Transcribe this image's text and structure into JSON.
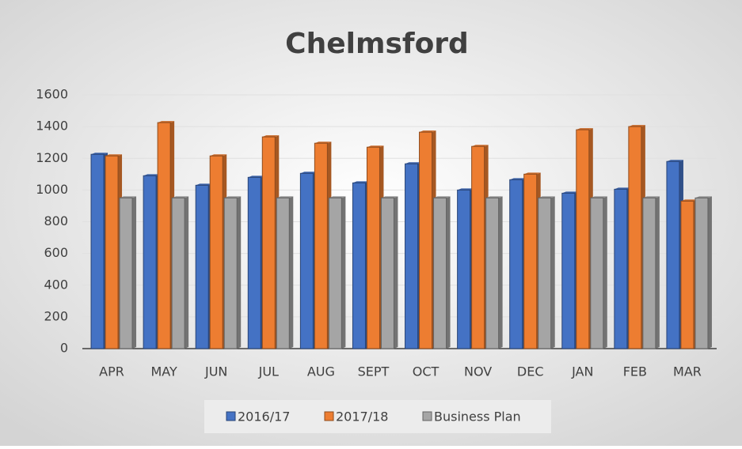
{
  "chart_data": {
    "type": "bar",
    "title": "Chelmsford",
    "categories": [
      "APR",
      "MAY",
      "JUN",
      "JUL",
      "AUG",
      "SEPT",
      "OCT",
      "NOV",
      "DEC",
      "JAN",
      "FEB",
      "MAR"
    ],
    "series": [
      {
        "name": "2016/17",
        "color": "#4472c4",
        "values": [
          1225,
          1090,
          1030,
          1080,
          1105,
          1045,
          1165,
          1000,
          1065,
          980,
          1005,
          1180
        ]
      },
      {
        "name": "2017/18",
        "color": "#ed7d31",
        "values": [
          1215,
          1425,
          1215,
          1335,
          1295,
          1270,
          1365,
          1275,
          1100,
          1380,
          1400,
          930
        ]
      },
      {
        "name": "Business Plan",
        "color": "#a5a5a5",
        "values": [
          950,
          950,
          950,
          950,
          950,
          950,
          950,
          950,
          950,
          950,
          950,
          950
        ]
      }
    ],
    "ylim": [
      0,
      1600
    ],
    "yticks": [
      0,
      200,
      400,
      600,
      800,
      1000,
      1200,
      1400,
      1600
    ],
    "grid": true
  }
}
